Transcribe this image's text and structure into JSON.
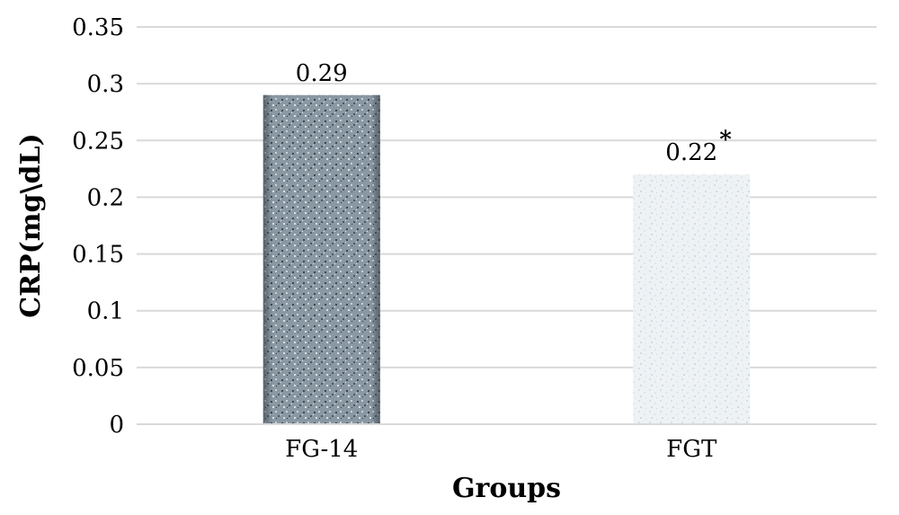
{
  "chart_data": {
    "type": "bar",
    "categories": [
      "FG-14",
      "FGT"
    ],
    "values": [
      0.29,
      0.22
    ],
    "data_labels": [
      "0.29",
      "0.22"
    ],
    "annotations": [
      "",
      "*"
    ],
    "xlabel": "Groups",
    "ylabel": "CRP(mg\\dL)",
    "ylim": [
      0,
      0.35
    ],
    "yticks": [
      "0",
      "0.05",
      "0.1",
      "0.15",
      "0.2",
      "0.25",
      "0.3",
      "0.35"
    ],
    "grid": true,
    "colors": {
      "grid": "#d9d9d9",
      "bar_dark": "#6f7d88",
      "bar_light": "#eef2f4"
    }
  }
}
